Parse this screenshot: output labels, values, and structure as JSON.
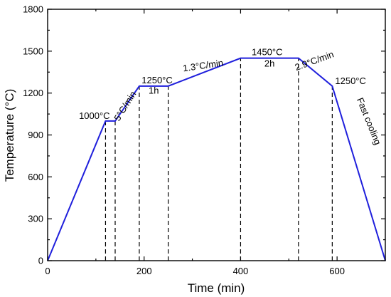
{
  "chart_data": {
    "type": "line",
    "title": "",
    "xlabel": "Time (min)",
    "ylabel": "Temperature (°C)",
    "xlim": [
      0,
      700
    ],
    "ylim": [
      0,
      1800
    ],
    "xticks": [
      0,
      200,
      400,
      600
    ],
    "yticks": [
      0,
      300,
      600,
      900,
      1200,
      1500,
      1800
    ],
    "grid": false,
    "series": [
      {
        "color": "#1f1fdc",
        "x": [
          0,
          120,
          140,
          190,
          250,
          400,
          520,
          590,
          700
        ],
        "y": [
          0,
          1000,
          1000,
          1250,
          1250,
          1450,
          1450,
          1250,
          0
        ]
      }
    ],
    "dashed_lines": [
      {
        "x": 120,
        "y": 1000
      },
      {
        "x": 140,
        "y": 1000
      },
      {
        "x": 190,
        "y": 1250
      },
      {
        "x": 250,
        "y": 1250
      },
      {
        "x": 400,
        "y": 1450
      },
      {
        "x": 520,
        "y": 1450
      },
      {
        "x": 590,
        "y": 1250
      }
    ],
    "annotations": [
      {
        "text": "1000°C",
        "x": 97,
        "y": 1015,
        "rotate": 0
      },
      {
        "text": "5°C/min",
        "x": 166,
        "y": 1095,
        "rotate": -58
      },
      {
        "text": "1250°C",
        "x": 227,
        "y": 1270,
        "rotate": 0
      },
      {
        "text": "1h",
        "x": 220,
        "y": 1195,
        "rotate": 0
      },
      {
        "text": "1.3°C/min",
        "x": 323,
        "y": 1375,
        "rotate": -8
      },
      {
        "text": "1450°C",
        "x": 455,
        "y": 1470,
        "rotate": 0
      },
      {
        "text": "2h",
        "x": 460,
        "y": 1390,
        "rotate": 0
      },
      {
        "text": "2.9°C/min",
        "x": 555,
        "y": 1410,
        "rotate": -20
      },
      {
        "text": "1250°C",
        "x": 628,
        "y": 1265,
        "rotate": 0
      },
      {
        "text": "Fast cooling",
        "x": 660,
        "y": 990,
        "rotate": 68
      }
    ]
  }
}
